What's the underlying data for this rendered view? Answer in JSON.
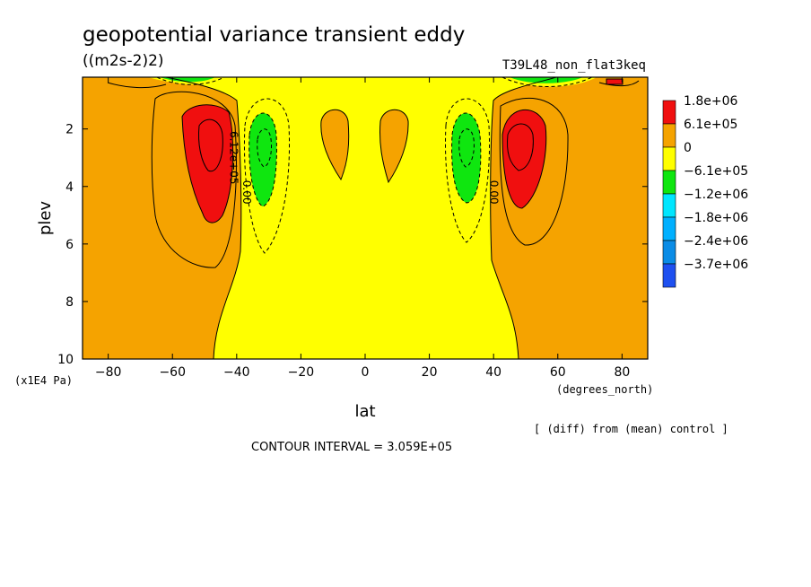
{
  "title": "geopotential variance transient eddy",
  "units": "((m2s-2)2)",
  "run_label": "T39L48_non_flat3keq",
  "diff_note": "[ (diff) from (mean) control ]",
  "contour_interval": "CONTOUR INTERVAL = 3.059E+05",
  "chart_data": {
    "type": "heatmap",
    "xlabel": "lat",
    "x_unit_label": "(degrees_north)",
    "ylabel": "plev",
    "y_unit_label": "(x1E4 Pa)",
    "xlim": [
      -88,
      88
    ],
    "ylim": [
      10,
      0.2
    ],
    "x_ticks": [
      -80,
      -60,
      -40,
      -20,
      0,
      20,
      40,
      60,
      80
    ],
    "y_ticks": [
      2,
      4,
      6,
      8,
      10
    ],
    "x_tick_labels": [
      "−80",
      "−60",
      "−40",
      "−20",
      "0",
      "20",
      "40",
      "60",
      "80"
    ],
    "y_tick_labels": [
      "2",
      "4",
      "6",
      "8",
      "10"
    ],
    "legend": {
      "placement": "right",
      "levels": [
        {
          "label": "1.8e+06",
          "color": "#f00f0f"
        },
        {
          "label": "6.1e+05",
          "color": "#f5a300"
        },
        {
          "label": "0",
          "color": "#ffff00"
        },
        {
          "label": "−6.1e+05",
          "color": "#0fe60f"
        },
        {
          "label": "−1.2e+06",
          "color": "#00e6ff"
        },
        {
          "label": "−1.8e+06",
          "color": "#00b0ff"
        },
        {
          "label": "−2.4e+06",
          "color": "#0a8ce6"
        },
        {
          "label": "−3.7e+06",
          "color": "#1e50f0"
        }
      ]
    },
    "contour_labels": [
      {
        "text": "6.12e+05",
        "lat": -42,
        "plev": 3.0
      },
      {
        "text": "0.00",
        "lat": -38,
        "plev": 4.2
      },
      {
        "text": "0.00",
        "lat": 39,
        "plev": 4.2
      }
    ],
    "regions": [
      {
        "kind": "positive_max",
        "lat": [
          -56,
          -39
        ],
        "plev": [
          1.1,
          5.2
        ],
        "color": "#f00f0f"
      },
      {
        "kind": "positive_max",
        "lat": [
          42,
          56
        ],
        "plev": [
          1.2,
          4.7
        ],
        "color": "#f00f0f"
      },
      {
        "kind": "negative",
        "lat": [
          -36,
          -28
        ],
        "plev": [
          1.3,
          4.6
        ],
        "color": "#0fe60f"
      },
      {
        "kind": "negative",
        "lat": [
          27,
          36
        ],
        "plev": [
          1.3,
          4.6
        ],
        "color": "#0fe60f"
      },
      {
        "kind": "positive",
        "lat": [
          -14,
          -4
        ],
        "plev": [
          1.1,
          3.6
        ],
        "color": "#f5a300"
      },
      {
        "kind": "positive",
        "lat": [
          5,
          14
        ],
        "plev": [
          1.1,
          3.6
        ],
        "color": "#f5a300"
      }
    ]
  }
}
